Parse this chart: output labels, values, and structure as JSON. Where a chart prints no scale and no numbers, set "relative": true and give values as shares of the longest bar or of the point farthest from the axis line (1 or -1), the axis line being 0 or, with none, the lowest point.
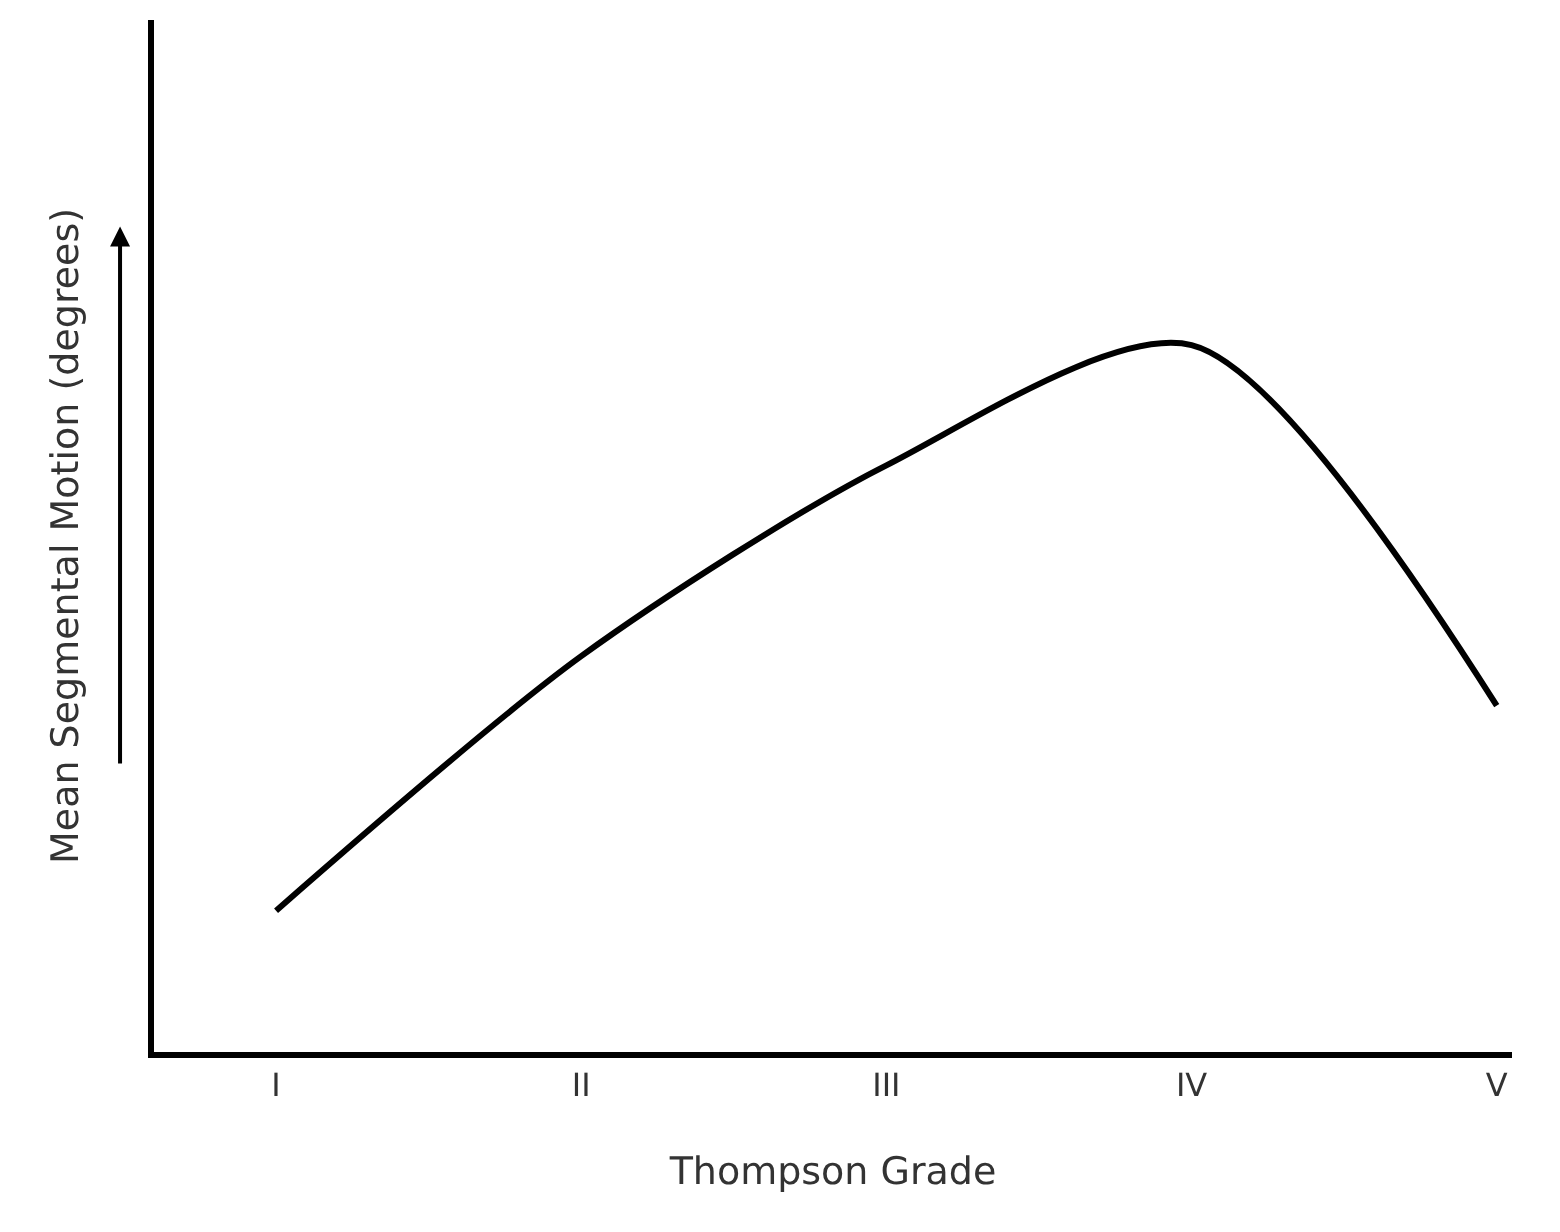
{
  "chart_data": {
    "type": "line",
    "relative": true,
    "xlabel": "Thompson Grade",
    "ylabel": "Mean Segmental Motion (degrees)",
    "categories": [
      "I",
      "II",
      "III",
      "IV",
      "V"
    ],
    "series": [
      {
        "color": "#000000",
        "values": [
          0.2,
          0.56,
          0.83,
          1,
          0.49
        ]
      }
    ],
    "tick_labels": "x",
    "grid": false,
    "legend": false,
    "marker": "none",
    "line_style": "solid"
  }
}
